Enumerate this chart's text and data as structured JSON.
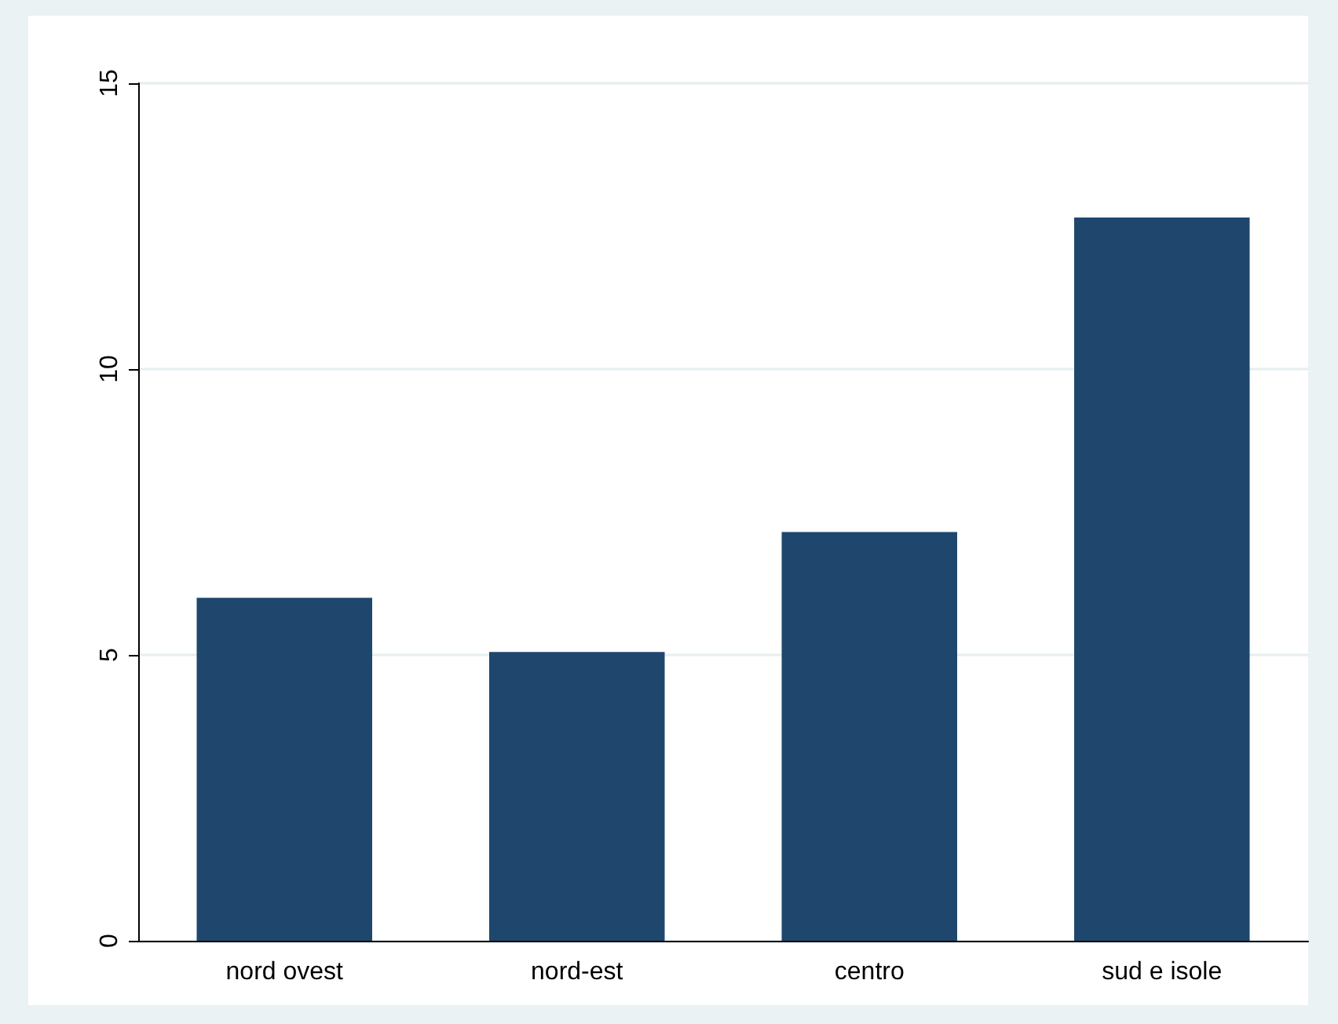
{
  "chart_data": {
    "type": "bar",
    "categories": [
      "nord ovest",
      "nord-est",
      "centro",
      "sud e isole"
    ],
    "values": [
      6.0,
      5.05,
      7.15,
      12.65
    ],
    "color": "#1f476d",
    "ylim": [
      0,
      15
    ],
    "yticks": [
      0,
      5,
      10,
      15
    ],
    "grid": "y"
  }
}
